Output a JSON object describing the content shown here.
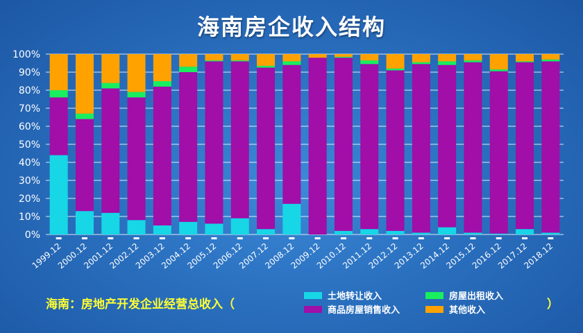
{
  "title": "海南房企收入结构",
  "footer": {
    "prefix": "海南：房地产开发企业经营总收入（",
    "suffix": "）"
  },
  "colors": {
    "land": "#17d6e6",
    "sales": "#a10ea8",
    "rent": "#19ee5e",
    "other": "#ffa200"
  },
  "chart_data": {
    "type": "bar",
    "stacked": true,
    "percent": true,
    "categories": [
      "1999.12",
      "2000.12",
      "2001.12",
      "2002.12",
      "2003.12",
      "2004.12",
      "2005.12",
      "2006.12",
      "2007.12",
      "2008.12",
      "2009.12",
      "2010.12",
      "2011.12",
      "2012.12",
      "2013.12",
      "2014.12",
      "2015.12",
      "2016.12",
      "2017.12",
      "2018.12"
    ],
    "y_ticks": [
      "0%",
      "10%",
      "20%",
      "30%",
      "40%",
      "50%",
      "60%",
      "70%",
      "80%",
      "90%",
      "100%"
    ],
    "ylim": [
      0,
      100
    ],
    "series": [
      {
        "name": "土地转让收入",
        "key": "land",
        "values": [
          44,
          13,
          12,
          8,
          5,
          7,
          6,
          9,
          3,
          17,
          0,
          2,
          3,
          2,
          1,
          4,
          1,
          0.5,
          3,
          1
        ]
      },
      {
        "name": "商品房屋销售收入",
        "key": "sales",
        "values": [
          32,
          51,
          69,
          68,
          77,
          83,
          90,
          87,
          89.5,
          77,
          98,
          96,
          91.5,
          89,
          93.5,
          90,
          94.5,
          90,
          92.5,
          95
        ]
      },
      {
        "name": "房屋出租收入",
        "key": "rent",
        "values": [
          4,
          3,
          3,
          3,
          3,
          3,
          0.5,
          0.5,
          1,
          2,
          0,
          0.5,
          2,
          1,
          1,
          2,
          1,
          1,
          0.5,
          1
        ]
      },
      {
        "name": "其他收入",
        "key": "other",
        "values": [
          20,
          33,
          16,
          21,
          15,
          7,
          3.5,
          3.5,
          6.5,
          4,
          2,
          1.5,
          3.5,
          8,
          4.5,
          4,
          3.5,
          8.5,
          4,
          3
        ]
      }
    ],
    "legend": [
      {
        "label": "土地转让收入",
        "key": "land"
      },
      {
        "label": "房屋出租收入",
        "key": "rent"
      },
      {
        "label": "商品房屋销售收入",
        "key": "sales"
      },
      {
        "label": "其他收入",
        "key": "other"
      }
    ],
    "grid": true
  }
}
